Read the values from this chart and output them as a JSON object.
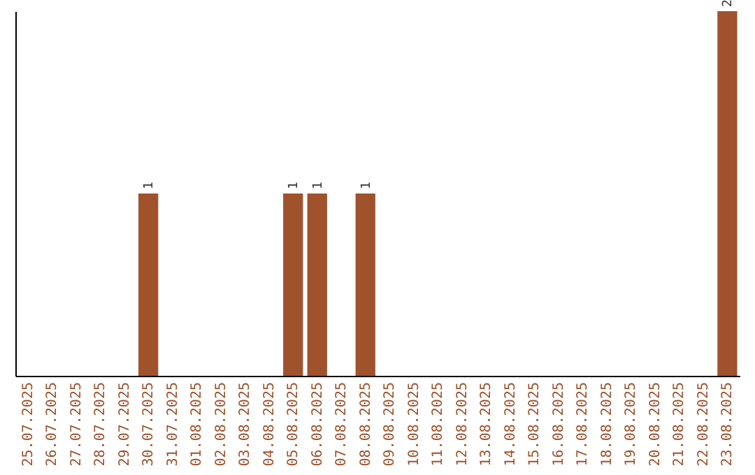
{
  "chart_data": {
    "type": "bar",
    "categories": [
      "25.07.2025",
      "26.07.2025",
      "27.07.2025",
      "28.07.2025",
      "29.07.2025",
      "30.07.2025",
      "31.07.2025",
      "01.08.2025",
      "02.08.2025",
      "03.08.2025",
      "04.08.2025",
      "05.08.2025",
      "06.08.2025",
      "07.08.2025",
      "08.08.2025",
      "09.08.2025",
      "10.08.2025",
      "11.08.2025",
      "12.08.2025",
      "13.08.2025",
      "14.08.2025",
      "15.08.2025",
      "16.08.2025",
      "17.08.2025",
      "18.08.2025",
      "19.08.2025",
      "20.08.2025",
      "21.08.2025",
      "22.08.2025",
      "23.08.2025"
    ],
    "values": [
      0,
      0,
      0,
      0,
      0,
      1,
      0,
      0,
      0,
      0,
      0,
      1,
      1,
      0,
      1,
      0,
      0,
      0,
      0,
      0,
      0,
      0,
      0,
      0,
      0,
      0,
      0,
      0,
      0,
      2
    ],
    "value_labels": [
      null,
      null,
      null,
      null,
      null,
      "1",
      null,
      null,
      null,
      null,
      null,
      "1",
      "1",
      null,
      "1",
      null,
      null,
      null,
      null,
      null,
      null,
      null,
      null,
      null,
      null,
      null,
      null,
      null,
      null,
      "2"
    ],
    "color": "#a0522d",
    "tick_labels": "x"
  }
}
